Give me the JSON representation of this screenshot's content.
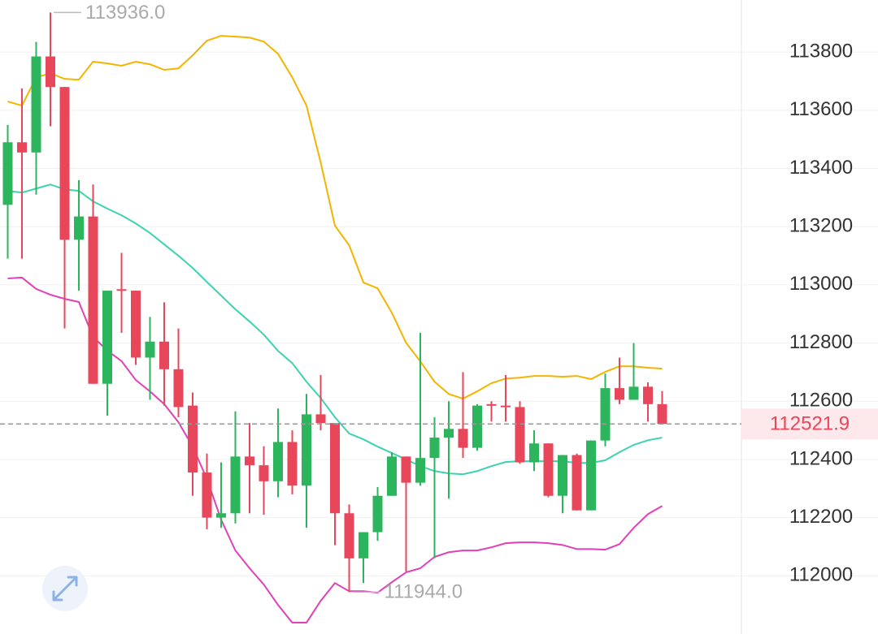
{
  "chart_data": {
    "type": "candlestick",
    "up_color": "#2db55d",
    "down_color": "#e8465a",
    "open": [
      113275,
      113490,
      113455,
      113785,
      113680,
      113155,
      113235,
      112660,
      112985,
      112980,
      112750,
      112805,
      112710,
      112585,
      112355,
      112200,
      112215,
      112410,
      112380,
      112325,
      112460,
      112310,
      112555,
      112525,
      112215,
      112060,
      112150,
      112275,
      112410,
      112320,
      112405,
      112475,
      112505,
      112440,
      112590,
      112585,
      112580,
      112390,
      112455,
      112275,
      112415,
      112225,
      112465,
      112645,
      112605,
      112650,
      112590
    ],
    "high": [
      113550,
      113675,
      113835,
      113936,
      113680,
      113360,
      113345,
      112980,
      113110,
      112980,
      112890,
      112940,
      112850,
      112630,
      112420,
      112390,
      112565,
      112525,
      112445,
      112575,
      112500,
      112625,
      112690,
      112525,
      112245,
      112150,
      112305,
      112425,
      112410,
      112835,
      112545,
      112600,
      112700,
      112590,
      112600,
      112690,
      112600,
      112500,
      112455,
      112415,
      112420,
      112465,
      112695,
      112750,
      112800,
      112665,
      112635
    ],
    "low": [
      113090,
      113090,
      113310,
      113545,
      112850,
      112980,
      112660,
      112550,
      112835,
      112725,
      112605,
      112585,
      112545,
      112275,
      112160,
      112165,
      112180,
      112215,
      112210,
      112270,
      112280,
      112165,
      112500,
      112105,
      111944,
      111975,
      112120,
      112275,
      112015,
      112310,
      112060,
      112265,
      112405,
      112430,
      112530,
      112530,
      112385,
      112360,
      112270,
      112215,
      112225,
      112225,
      112445,
      112590,
      112605,
      112530,
      112522
    ],
    "close": [
      113490,
      113455,
      113785,
      113680,
      113155,
      113235,
      112660,
      112980,
      112980,
      112750,
      112805,
      112710,
      112580,
      112355,
      112200,
      112215,
      112410,
      112380,
      112325,
      112460,
      112310,
      112555,
      112525,
      112215,
      112060,
      112150,
      112275,
      112410,
      112320,
      112405,
      112475,
      112505,
      112440,
      112585,
      112585,
      112580,
      112390,
      112455,
      112275,
      112415,
      112225,
      112465,
      112645,
      112605,
      112650,
      112590,
      112522
    ],
    "bands": [
      {
        "color": "#f5b400",
        "values": [
          113630,
          113616,
          113713,
          113727,
          113708,
          113705,
          113767,
          113761,
          113753,
          113767,
          113758,
          113739,
          113744,
          113789,
          113839,
          113856,
          113853,
          113850,
          113836,
          113794,
          113713,
          113616,
          113420,
          113203,
          113136,
          113008,
          112988,
          112904,
          112801,
          112737,
          112667,
          112625,
          112609,
          112634,
          112662,
          112678,
          112681,
          112687,
          112687,
          112684,
          112687,
          112676,
          112701,
          112720,
          112720,
          112715,
          112712
        ]
      },
      {
        "color": "#3cd3b0",
        "values": [
          113323,
          113317,
          113331,
          113345,
          113328,
          113323,
          113287,
          113262,
          113239,
          113211,
          113178,
          113139,
          113100,
          113058,
          113010,
          112963,
          112916,
          112874,
          112829,
          112773,
          112731,
          112667,
          112611,
          112545,
          112489,
          112469,
          112444,
          112422,
          112400,
          112377,
          112360,
          112352,
          112349,
          112360,
          112377,
          112391,
          112394,
          112394,
          112394,
          112394,
          112388,
          112388,
          112397,
          112425,
          112450,
          112466,
          112475
        ]
      },
      {
        "color": "#e040b8",
        "values": [
          113022,
          113025,
          112986,
          112966,
          112952,
          112941,
          112821,
          112774,
          112738,
          112673,
          112634,
          112590,
          112528,
          112444,
          112333,
          112193,
          112087,
          112026,
          111970,
          111900,
          111839,
          111839,
          111914,
          111975,
          111947,
          111947,
          111942,
          111978,
          112012,
          112026,
          112065,
          112081,
          112087,
          112087,
          112098,
          112112,
          112115,
          112115,
          112112,
          112106,
          112092,
          112092,
          112090,
          112109,
          112165,
          112212,
          112240
        ]
      }
    ],
    "ylim": [
      111800,
      113979
    ],
    "yticks": [
      112000,
      112200,
      112400,
      112600,
      112800,
      113000,
      113200,
      113400,
      113600,
      113800
    ],
    "grid": true,
    "last_price": 112521.9,
    "max_label": {
      "value": 113936,
      "label": "113936.0"
    },
    "min_label": {
      "value": 111944,
      "label": "111944.0"
    }
  }
}
